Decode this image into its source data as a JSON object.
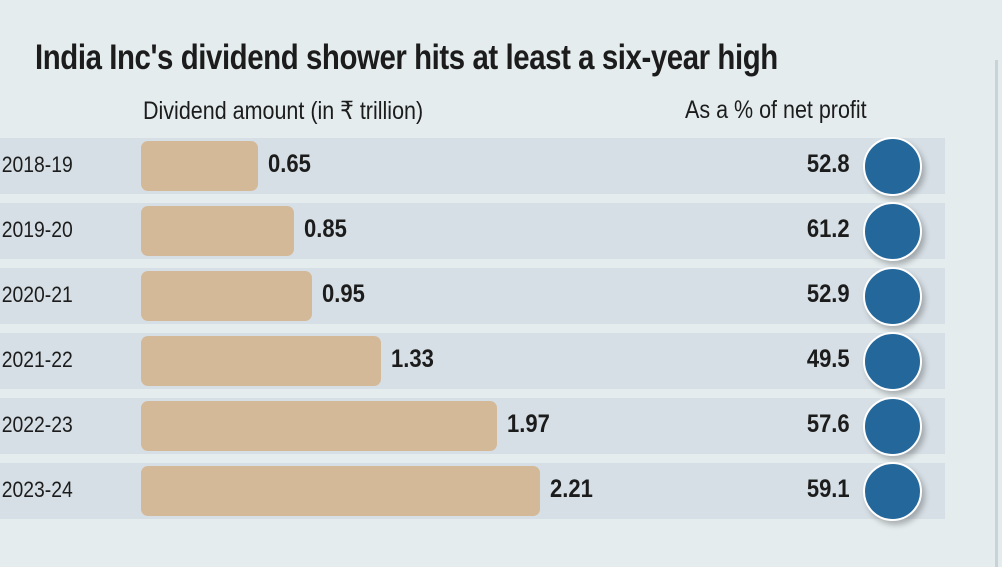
{
  "chart_data": {
    "type": "bar",
    "orientation": "horizontal",
    "title": "India Inc's dividend shower hits at least a six-year high",
    "categories": [
      "2018-19",
      "2019-20",
      "2020-21",
      "2021-22",
      "2022-23",
      "2023-24"
    ],
    "series": [
      {
        "name": "Dividend amount (in ₹ trillion)",
        "values": [
          0.65,
          0.85,
          0.95,
          1.33,
          1.97,
          2.21
        ],
        "labels": [
          "0.65",
          "0.85",
          "0.95",
          "1.33",
          "1.97",
          "2.21"
        ]
      },
      {
        "name": "As a % of net profit",
        "values": [
          52.8,
          61.2,
          52.9,
          49.5,
          57.6,
          59.1
        ],
        "labels": [
          "52.8",
          "61.2",
          "52.9",
          "49.5",
          "57.6",
          "59.1"
        ]
      }
    ],
    "colors": {
      "bar": "#d4b999",
      "dot": "#23679b",
      "row_band": "#d6dfe5",
      "background": "#e4ecee"
    },
    "grid": false,
    "xlim": [
      0,
      2.21
    ]
  }
}
